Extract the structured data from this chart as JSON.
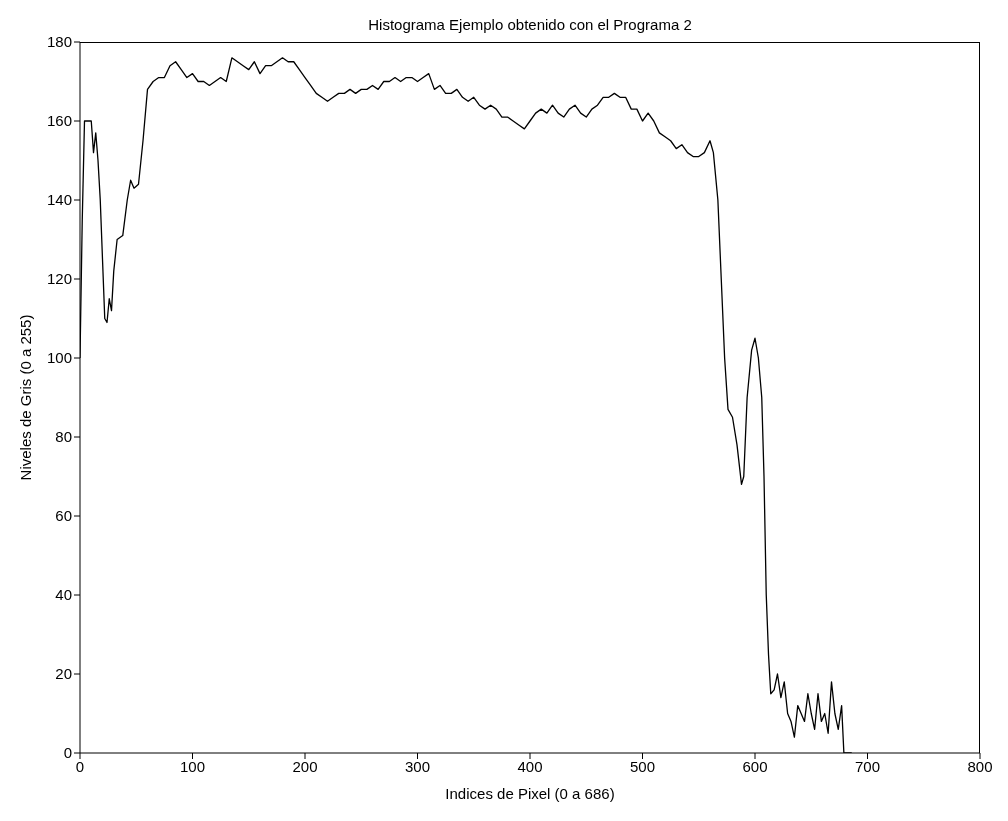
{
  "chart_data": {
    "type": "line",
    "title": "Histograma Ejemplo obtenido con el Programa 2",
    "xlabel": "Indices de Pixel (0 a 686)",
    "ylabel": "Niveles de Gris (0 a 255)",
    "x": [
      0,
      2,
      4,
      10,
      12,
      14,
      16,
      18,
      20,
      22,
      24,
      26,
      28,
      30,
      33,
      38,
      42,
      45,
      48,
      52,
      56,
      60,
      65,
      70,
      75,
      80,
      85,
      90,
      95,
      100,
      105,
      110,
      115,
      120,
      125,
      130,
      135,
      140,
      145,
      150,
      155,
      160,
      165,
      170,
      175,
      180,
      185,
      190,
      195,
      200,
      205,
      210,
      215,
      220,
      225,
      230,
      235,
      240,
      245,
      250,
      255,
      260,
      265,
      270,
      275,
      280,
      285,
      290,
      295,
      300,
      305,
      310,
      315,
      320,
      325,
      330,
      335,
      340,
      345,
      350,
      355,
      360,
      365,
      370,
      375,
      380,
      385,
      390,
      395,
      400,
      405,
      410,
      415,
      420,
      425,
      430,
      435,
      440,
      445,
      450,
      455,
      460,
      465,
      470,
      475,
      480,
      485,
      490,
      495,
      500,
      505,
      510,
      515,
      520,
      525,
      530,
      535,
      540,
      545,
      550,
      555,
      560,
      563,
      567,
      570,
      573,
      576,
      580,
      584,
      588,
      590,
      593,
      597,
      600,
      603,
      606,
      608,
      610,
      612,
      614,
      617,
      620,
      623,
      626,
      629,
      632,
      635,
      638,
      641,
      644,
      647,
      650,
      653,
      656,
      659,
      662,
      665,
      668,
      671,
      674,
      677,
      679,
      686
    ],
    "series": [
      {
        "color": "#000000",
        "values": [
          100,
          135,
          160,
          160,
          152,
          157,
          150,
          140,
          125,
          110,
          109,
          115,
          112,
          122,
          130,
          131,
          140,
          145,
          143,
          144,
          155,
          168,
          170,
          171,
          171,
          174,
          175,
          173,
          171,
          172,
          170,
          170,
          169,
          170,
          171,
          170,
          176,
          175,
          174,
          173,
          175,
          172,
          174,
          174,
          175,
          176,
          175,
          175,
          173,
          171,
          169,
          167,
          166,
          165,
          166,
          167,
          167,
          168,
          167,
          168,
          168,
          169,
          168,
          170,
          170,
          171,
          170,
          171,
          171,
          170,
          171,
          172,
          168,
          169,
          167,
          167,
          168,
          166,
          165,
          166,
          164,
          163,
          164,
          163,
          161,
          161,
          160,
          159,
          158,
          160,
          162,
          163,
          162,
          164,
          162,
          161,
          163,
          164,
          162,
          161,
          163,
          164,
          166,
          166,
          167,
          166,
          166,
          163,
          163,
          160,
          162,
          160,
          157,
          156,
          155,
          153,
          154,
          152,
          151,
          151,
          152,
          155,
          152,
          140,
          120,
          100,
          87,
          85,
          78,
          68,
          70,
          90,
          102,
          105,
          100,
          90,
          70,
          40,
          25,
          15,
          16,
          20,
          14,
          18,
          10,
          8,
          4,
          12,
          10,
          8,
          15,
          10,
          6,
          15,
          8,
          10,
          5,
          18,
          10,
          6,
          12,
          0,
          0
        ]
      }
    ],
    "xlim": [
      0,
      800
    ],
    "xticks": [
      0,
      100,
      200,
      300,
      400,
      500,
      600,
      700,
      800
    ],
    "ylim": [
      0,
      180
    ],
    "yticks": [
      0,
      20,
      40,
      60,
      80,
      100,
      120,
      140,
      160,
      180
    ],
    "grid": false,
    "legend": false,
    "marker": "none",
    "line_style": "solid"
  }
}
